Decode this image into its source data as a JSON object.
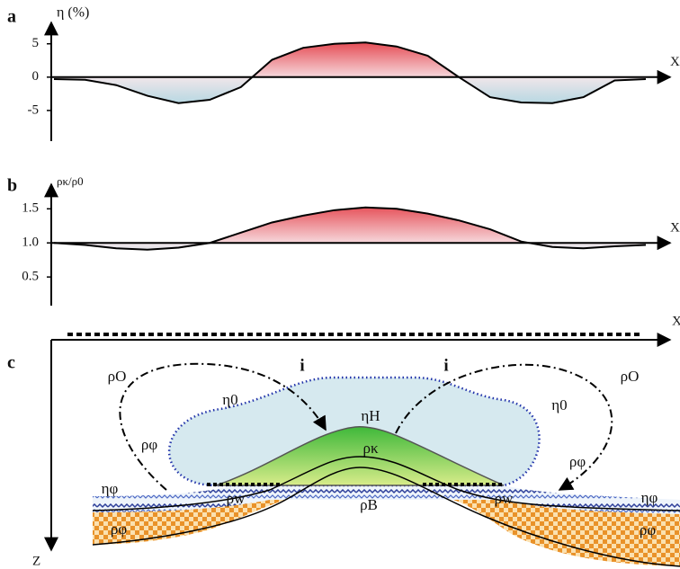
{
  "chart_data": [
    {
      "type": "area",
      "label": "a",
      "ylabel": "η (%)",
      "xlabel": "X",
      "values": [
        -0.3,
        -0.4,
        -1.2,
        -2.8,
        -3.9,
        -3.4,
        -1.5,
        2.6,
        4.4,
        5.0,
        5.2,
        4.6,
        3.2,
        0.0,
        -3.0,
        -3.8,
        -3.9,
        -3.0,
        -0.5,
        -0.3
      ],
      "baseline": 0,
      "ylim": [
        -9.6,
        8.2
      ],
      "yticks": [
        5,
        0,
        -5
      ],
      "colors": [
        "#e0202a",
        "#a8d4e0"
      ]
    },
    {
      "type": "area",
      "label": "b",
      "ylabel": "ρκ/ρ0",
      "xlabel": "X",
      "values": [
        1.0,
        0.97,
        0.92,
        0.9,
        0.93,
        1.0,
        1.15,
        1.3,
        1.4,
        1.48,
        1.52,
        1.5,
        1.43,
        1.33,
        1.2,
        1.02,
        0.94,
        0.92,
        0.95,
        0.97
      ],
      "baseline": 1,
      "ylim": [
        0.08,
        1.86
      ],
      "yticks": [
        {
          "value": 1.5,
          "label": "1.5"
        },
        {
          "value": 1,
          "label": "1.0"
        },
        {
          "value": 0.5,
          "label": "0.5"
        }
      ],
      "colors": [
        "#e0202a",
        "#a8d4e0"
      ]
    }
  ],
  "diagram": {
    "label": "c",
    "x_axis": "X",
    "z_axis": "Z",
    "labels": [
      "ρO",
      "ρO",
      "i",
      "i",
      "η0",
      "η0",
      "ρφ",
      "ρφ",
      "ηH",
      "ρκ",
      "ηφ",
      "ηφ",
      "ρw",
      "ρw",
      "ρB",
      "ρφ",
      "ρφ"
    ]
  }
}
